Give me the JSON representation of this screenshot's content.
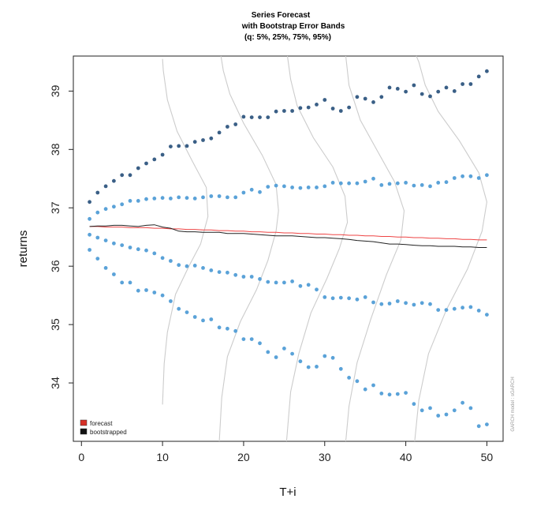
{
  "chart_data": {
    "type": "scatter",
    "title": [
      "Series Forecast",
      "with Bootstrap Error Bands",
      "(q: 5%, 25%, 75%, 95%)"
    ],
    "xlabel": "T+i",
    "ylabel": "returns",
    "xlim": [
      -1,
      52
    ],
    "ylim": [
      33.0,
      39.6
    ],
    "xticks": [
      "0",
      "10",
      "20",
      "30",
      "40",
      "50"
    ],
    "yticks": [
      "34",
      "35",
      "36",
      "37",
      "38",
      "39"
    ],
    "grid": false,
    "legend_position": "bottom-left",
    "legend": [
      {
        "label": "forecast",
        "color": "#d73027"
      },
      {
        "label": "bootstrapped",
        "color": "#111111"
      }
    ],
    "side_note": "GARCH model : sGARCH",
    "colors": {
      "q95": "#3a5f86",
      "q75": "#5aa2d8",
      "q25": "#5aa2d8",
      "q05": "#5aa2d8",
      "forecast": "#ee4444",
      "bootstrapped": "#222222",
      "density": "#cccccc"
    },
    "x": [
      1,
      2,
      3,
      4,
      5,
      6,
      7,
      8,
      9,
      10,
      11,
      12,
      13,
      14,
      15,
      16,
      17,
      18,
      19,
      20,
      21,
      22,
      23,
      24,
      25,
      26,
      27,
      28,
      29,
      30,
      31,
      32,
      33,
      34,
      35,
      36,
      37,
      38,
      39,
      40,
      41,
      42,
      43,
      44,
      45,
      46,
      47,
      48,
      49,
      50
    ],
    "series": [
      {
        "id": "q95",
        "values": [
          37.1,
          37.26,
          37.37,
          37.46,
          37.56,
          37.56,
          37.68,
          37.76,
          37.83,
          37.91,
          38.05,
          38.06,
          38.06,
          38.13,
          38.16,
          38.19,
          38.29,
          38.39,
          38.43,
          38.56,
          38.55,
          38.55,
          38.55,
          38.65,
          38.66,
          38.66,
          38.71,
          38.72,
          38.77,
          38.85,
          38.7,
          38.66,
          38.72,
          38.9,
          38.87,
          38.81,
          38.9,
          39.06,
          39.04,
          38.99,
          39.1,
          38.95,
          38.91,
          38.99,
          39.06,
          39.0,
          39.12,
          39.12,
          39.25,
          39.34
        ]
      },
      {
        "id": "q75",
        "values": [
          36.81,
          36.92,
          36.98,
          37.02,
          37.06,
          37.12,
          37.12,
          37.15,
          37.16,
          37.17,
          37.16,
          37.18,
          37.17,
          37.16,
          37.18,
          37.2,
          37.2,
          37.18,
          37.18,
          37.26,
          37.31,
          37.27,
          37.36,
          37.38,
          37.37,
          37.35,
          37.34,
          37.35,
          37.35,
          37.37,
          37.43,
          37.42,
          37.42,
          37.42,
          37.45,
          37.5,
          37.39,
          37.41,
          37.42,
          37.43,
          37.38,
          37.39,
          37.37,
          37.43,
          37.44,
          37.51,
          37.54,
          37.54,
          37.51,
          37.56
        ]
      },
      {
        "id": "q25",
        "values": [
          36.54,
          36.49,
          36.44,
          36.39,
          36.36,
          36.32,
          36.29,
          36.27,
          36.22,
          36.14,
          36.09,
          36.02,
          36.0,
          36.01,
          35.97,
          35.93,
          35.9,
          35.89,
          35.85,
          35.82,
          35.82,
          35.78,
          35.73,
          35.72,
          35.72,
          35.74,
          35.66,
          35.68,
          35.6,
          35.47,
          35.45,
          35.46,
          35.45,
          35.43,
          35.47,
          35.38,
          35.35,
          35.36,
          35.4,
          35.37,
          35.34,
          35.37,
          35.35,
          35.25,
          35.25,
          35.27,
          35.29,
          35.3,
          35.24,
          35.17
        ]
      },
      {
        "id": "q05",
        "values": [
          36.28,
          36.13,
          35.97,
          35.86,
          35.72,
          35.72,
          35.58,
          35.59,
          35.55,
          35.5,
          35.4,
          35.27,
          35.21,
          35.13,
          35.07,
          35.09,
          34.95,
          34.93,
          34.89,
          34.75,
          34.75,
          34.68,
          34.53,
          34.44,
          34.59,
          34.5,
          34.37,
          34.27,
          34.28,
          34.46,
          34.43,
          34.24,
          34.09,
          34.03,
          33.89,
          33.96,
          33.82,
          33.8,
          33.81,
          33.83,
          33.64,
          33.53,
          33.57,
          33.44,
          33.46,
          33.53,
          33.66,
          33.57,
          33.26,
          33.29
        ]
      },
      {
        "id": "forecast",
        "values": [
          36.68,
          36.68,
          36.67,
          36.67,
          36.67,
          36.66,
          36.66,
          36.66,
          36.65,
          36.65,
          36.64,
          36.64,
          36.63,
          36.63,
          36.62,
          36.62,
          36.61,
          36.61,
          36.6,
          36.6,
          36.59,
          36.59,
          36.58,
          36.58,
          36.57,
          36.57,
          36.56,
          36.56,
          36.55,
          36.55,
          36.54,
          36.54,
          36.53,
          36.53,
          36.52,
          36.52,
          36.51,
          36.51,
          36.5,
          36.5,
          36.49,
          36.49,
          36.48,
          36.48,
          36.47,
          36.47,
          36.46,
          36.46,
          36.45,
          36.45
        ]
      },
      {
        "id": "bootstrapped",
        "values": [
          36.68,
          36.69,
          36.69,
          36.7,
          36.7,
          36.69,
          36.68,
          36.7,
          36.71,
          36.67,
          36.65,
          36.6,
          36.59,
          36.59,
          36.58,
          36.58,
          36.58,
          36.56,
          36.56,
          36.56,
          36.55,
          36.54,
          36.53,
          36.52,
          36.52,
          36.52,
          36.51,
          36.5,
          36.49,
          36.49,
          36.48,
          36.47,
          36.46,
          36.44,
          36.43,
          36.42,
          36.4,
          36.38,
          36.38,
          36.37,
          36.36,
          36.35,
          36.35,
          36.34,
          36.34,
          36.34,
          36.33,
          36.33,
          36.32,
          36.32
        ]
      }
    ],
    "density_curves": [
      {
        "x_base": 10,
        "values": [
          [
            10.0,
            33.63
          ],
          [
            10.2,
            34.33
          ],
          [
            10.6,
            34.87
          ],
          [
            11.6,
            35.52
          ],
          [
            13.3,
            36.01
          ],
          [
            14.7,
            36.38
          ],
          [
            15.6,
            36.85
          ],
          [
            15.4,
            37.35
          ],
          [
            13.6,
            37.82
          ],
          [
            11.8,
            38.31
          ],
          [
            10.6,
            38.85
          ],
          [
            10.1,
            39.35
          ],
          [
            10.0,
            39.55
          ]
        ]
      },
      {
        "x_base": 17,
        "values": [
          [
            17.0,
            33.0
          ],
          [
            17.3,
            33.75
          ],
          [
            18.0,
            34.45
          ],
          [
            19.6,
            35.05
          ],
          [
            21.6,
            35.6
          ],
          [
            23.0,
            36.1
          ],
          [
            24.0,
            36.6
          ],
          [
            24.3,
            36.95
          ],
          [
            24.0,
            37.4
          ],
          [
            22.3,
            37.9
          ],
          [
            20.0,
            38.45
          ],
          [
            18.3,
            38.95
          ],
          [
            17.5,
            39.35
          ],
          [
            17.2,
            39.6
          ]
        ]
      },
      {
        "x_base": 25,
        "values": [
          [
            25.3,
            33.0
          ],
          [
            25.8,
            33.85
          ],
          [
            26.8,
            34.5
          ],
          [
            28.3,
            35.2
          ],
          [
            30.3,
            35.8
          ],
          [
            31.8,
            36.3
          ],
          [
            32.8,
            36.75
          ],
          [
            32.5,
            37.2
          ],
          [
            31.0,
            37.7
          ],
          [
            28.6,
            38.2
          ],
          [
            26.6,
            38.75
          ],
          [
            25.8,
            39.2
          ],
          [
            25.4,
            39.6
          ]
        ]
      },
      {
        "x_base": 32,
        "values": [
          [
            32.6,
            33.0
          ],
          [
            33.0,
            33.6
          ],
          [
            34.0,
            34.35
          ],
          [
            35.7,
            35.1
          ],
          [
            37.6,
            35.85
          ],
          [
            39.4,
            36.45
          ],
          [
            39.8,
            36.95
          ],
          [
            38.6,
            37.45
          ],
          [
            36.6,
            37.95
          ],
          [
            34.4,
            38.5
          ],
          [
            33.0,
            39.1
          ],
          [
            32.6,
            39.6
          ]
        ]
      },
      {
        "x_base": 41,
        "values": [
          [
            41.1,
            33.0
          ],
          [
            41.6,
            33.7
          ],
          [
            42.8,
            34.5
          ],
          [
            45.0,
            35.25
          ],
          [
            47.6,
            35.95
          ],
          [
            49.4,
            36.6
          ],
          [
            50.0,
            37.1
          ],
          [
            49.0,
            37.6
          ],
          [
            46.6,
            38.15
          ],
          [
            44.0,
            38.65
          ],
          [
            42.4,
            39.1
          ],
          [
            41.6,
            39.5
          ],
          [
            41.3,
            39.6
          ]
        ]
      }
    ]
  }
}
